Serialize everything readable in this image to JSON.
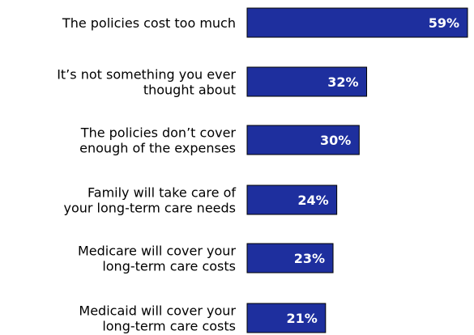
{
  "chart_data": {
    "type": "bar",
    "orientation": "horizontal",
    "categories": [
      [
        "The policies cost too much"
      ],
      [
        "It’s not something you ever",
        "thought about"
      ],
      [
        "The policies don’t cover",
        "enough of the expenses"
      ],
      [
        "Family will take care of",
        "your long-term care needs"
      ],
      [
        "Medicare will cover your",
        "long-term care costs"
      ],
      [
        "Medicaid will cover your",
        "long-term care costs"
      ]
    ],
    "values": [
      59,
      32,
      30,
      24,
      23,
      21
    ],
    "value_labels": [
      "59%",
      "32%",
      "30%",
      "24%",
      "23%",
      "21%"
    ],
    "unit": "%",
    "xlim": [
      0,
      59
    ],
    "grid": false,
    "title": "",
    "xlabel": "",
    "ylabel": ""
  },
  "colors": {
    "bar_fill": "#1E2F9E",
    "bar_stroke": "#000000",
    "value_text": "#ffffff",
    "label_text": "#000000"
  }
}
